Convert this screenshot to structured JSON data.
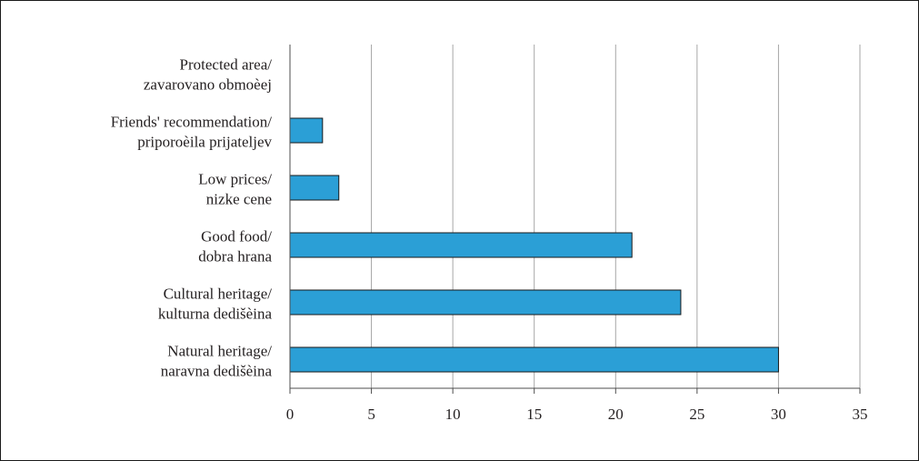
{
  "chart_data": {
    "type": "bar",
    "orientation": "horizontal",
    "categories": [
      [
        "Natural heritage/",
        "naravna dedišèina"
      ],
      [
        "Cultural heritage/",
        "kulturna dedišèina"
      ],
      [
        "Good food/",
        "dobra hrana"
      ],
      [
        "Low prices/",
        "nizke cene"
      ],
      [
        "Friends' recommendation/",
        "priporoèila prijateljev"
      ],
      [
        "Protected area/",
        "zavarovano obmoèej"
      ]
    ],
    "values": [
      30,
      24,
      21,
      3,
      2,
      0
    ],
    "xlim": [
      0,
      35
    ],
    "xticks": [
      "0",
      "5",
      "10",
      "15",
      "20",
      "25",
      "30",
      "35"
    ],
    "grid": "vertical",
    "legend": "none",
    "title": "",
    "xlabel": "",
    "ylabel": "",
    "colors": {
      "bar_fill": "#2b9fd6",
      "bar_stroke": "#1a1a1a",
      "grid": "#a6a6a6",
      "axis": "#4d4d4d"
    }
  }
}
